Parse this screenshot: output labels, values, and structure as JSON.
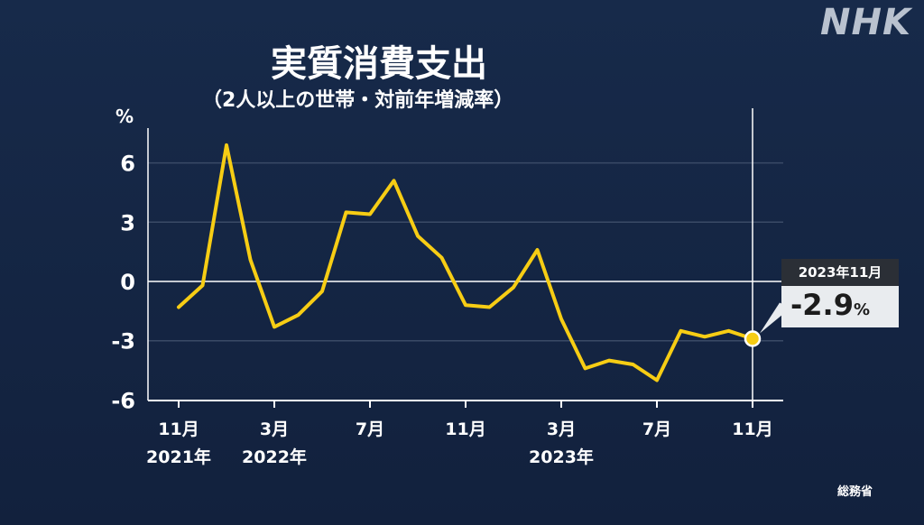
{
  "brand": {
    "logo": "NHK"
  },
  "header": {
    "title": "実質消費支出",
    "subtitle": "（2人以上の世帯・対前年増減率）"
  },
  "axis": {
    "y_unit": "%"
  },
  "callout": {
    "date": "2023年11月",
    "value": "-2.9",
    "unit": "%"
  },
  "source": "総務省",
  "colors": {
    "background": "#14233f",
    "line": "#f7cd14",
    "grid": "#3a4a66",
    "zero_line": "#ffffff"
  },
  "chart_data": {
    "type": "line",
    "title": "実質消費支出",
    "subtitle": "（2人以上の世帯・対前年増減率）",
    "ylabel": "%",
    "ylim": [
      -6,
      7.5
    ],
    "yticks": [
      6,
      3,
      0,
      -3,
      -6
    ],
    "ytick_labels": [
      "6",
      "3",
      "0",
      "-3",
      "-6"
    ],
    "grid": true,
    "x_tick_labels": [
      {
        "index": 0,
        "month": "11月",
        "year": "2021年"
      },
      {
        "index": 4,
        "month": "3月",
        "year": "2022年"
      },
      {
        "index": 8,
        "month": "7月",
        "year": ""
      },
      {
        "index": 12,
        "month": "11月",
        "year": ""
      },
      {
        "index": 16,
        "month": "3月",
        "year": "2023年"
      },
      {
        "index": 20,
        "month": "7月",
        "year": ""
      },
      {
        "index": 24,
        "month": "11月",
        "year": ""
      }
    ],
    "x": [
      "2021-11",
      "2021-12",
      "2022-01",
      "2022-02",
      "2022-03",
      "2022-04",
      "2022-05",
      "2022-06",
      "2022-07",
      "2022-08",
      "2022-09",
      "2022-10",
      "2022-11",
      "2022-12",
      "2023-01",
      "2023-02",
      "2023-03",
      "2023-04",
      "2023-05",
      "2023-06",
      "2023-07",
      "2023-08",
      "2023-09",
      "2023-10",
      "2023-11"
    ],
    "values": [
      -1.3,
      -0.2,
      6.9,
      1.1,
      -2.3,
      -1.7,
      -0.5,
      3.5,
      3.4,
      5.1,
      2.3,
      1.2,
      -1.2,
      -1.3,
      -0.3,
      1.6,
      -1.9,
      -4.4,
      -4.0,
      -4.2,
      -5.0,
      -2.5,
      -2.8,
      -2.5,
      -2.9
    ],
    "highlight": {
      "x": "2023-11",
      "value": -2.9
    }
  }
}
